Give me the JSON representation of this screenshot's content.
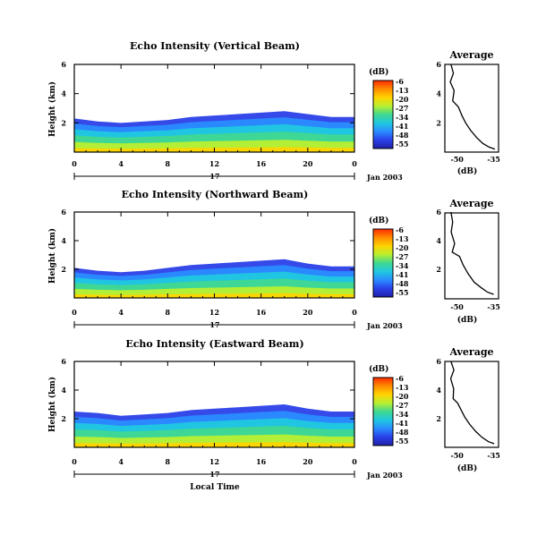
{
  "colorbar": {
    "title": "(dB)",
    "ticks": [
      "-6",
      "-13",
      "-20",
      "-27",
      "-34",
      "-41",
      "-48",
      "-55"
    ],
    "colors": [
      "#ff2a00",
      "#ff8c00",
      "#ffd400",
      "#b8f030",
      "#40d890",
      "#20c8e0",
      "#2a8cff",
      "#2a40e8",
      "#2020a8"
    ]
  },
  "shared": {
    "date_label": "Jan 2003",
    "day_label": "17",
    "xlabel": "Local Time",
    "ylabel": "Height (km)"
  },
  "chart_data": [
    {
      "type": "heatmap",
      "title": "Echo Intensity (Vertical Beam)",
      "xlabel": "",
      "ylabel": "Height (km)",
      "x_ticks": [
        "0",
        "4",
        "8",
        "12",
        "16",
        "20",
        "0"
      ],
      "y_ticks": [
        "2",
        "4",
        "6"
      ],
      "xlim": [
        0,
        24
      ],
      "ylim": [
        0,
        6
      ],
      "echo_top_km": [
        [
          0,
          2.3
        ],
        [
          2,
          2.1
        ],
        [
          4,
          2.0
        ],
        [
          6,
          2.1
        ],
        [
          8,
          2.2
        ],
        [
          10,
          2.4
        ],
        [
          12,
          2.5
        ],
        [
          14,
          2.6
        ],
        [
          16,
          2.7
        ],
        [
          18,
          2.8
        ],
        [
          20,
          2.6
        ],
        [
          22,
          2.4
        ],
        [
          24,
          2.4
        ]
      ],
      "profile": {
        "title": "Average",
        "xlabel": "(dB)",
        "x_ticks": [
          "-50",
          "-35"
        ],
        "y_ticks": [
          "2",
          "4",
          "6"
        ],
        "xlim": [
          -55,
          -33
        ],
        "ylim": [
          0,
          6
        ],
        "points": [
          [
            -52.5,
            6.0
          ],
          [
            -51.5,
            5.4
          ],
          [
            -52.8,
            4.8
          ],
          [
            -51.2,
            4.2
          ],
          [
            -51.8,
            3.5
          ],
          [
            -49.5,
            3.1
          ],
          [
            -48.0,
            2.5
          ],
          [
            -46.5,
            2.0
          ],
          [
            -44.5,
            1.5
          ],
          [
            -42.0,
            1.0
          ],
          [
            -39.5,
            0.6
          ],
          [
            -37.0,
            0.35
          ],
          [
            -34.5,
            0.2
          ]
        ]
      }
    },
    {
      "type": "heatmap",
      "title": "Echo Intensity (Northward Beam)",
      "xlabel": "",
      "ylabel": "Height (km)",
      "x_ticks": [
        "0",
        "4",
        "8",
        "12",
        "16",
        "20",
        "0"
      ],
      "y_ticks": [
        "2",
        "4",
        "6"
      ],
      "xlim": [
        0,
        24
      ],
      "ylim": [
        0,
        6
      ],
      "echo_top_km": [
        [
          0,
          2.1
        ],
        [
          2,
          1.9
        ],
        [
          4,
          1.8
        ],
        [
          6,
          1.9
        ],
        [
          8,
          2.1
        ],
        [
          10,
          2.3
        ],
        [
          12,
          2.4
        ],
        [
          14,
          2.5
        ],
        [
          16,
          2.6
        ],
        [
          18,
          2.7
        ],
        [
          20,
          2.4
        ],
        [
          22,
          2.2
        ],
        [
          24,
          2.2
        ]
      ],
      "profile": {
        "title": "Average",
        "xlabel": "(dB)",
        "x_ticks": [
          "-50",
          "-35"
        ],
        "y_ticks": [
          "2",
          "4",
          "6"
        ],
        "xlim": [
          -55,
          -33
        ],
        "ylim": [
          0,
          6
        ],
        "points": [
          [
            -52.5,
            6.0
          ],
          [
            -51.8,
            5.3
          ],
          [
            -52.4,
            4.6
          ],
          [
            -51.0,
            3.8
          ],
          [
            -52.0,
            3.2
          ],
          [
            -49.0,
            2.9
          ],
          [
            -47.5,
            2.3
          ],
          [
            -45.5,
            1.7
          ],
          [
            -43.0,
            1.1
          ],
          [
            -40.0,
            0.7
          ],
          [
            -37.5,
            0.4
          ],
          [
            -35.0,
            0.25
          ]
        ]
      }
    },
    {
      "type": "heatmap",
      "title": "Echo Intensity (Eastward Beam)",
      "xlabel": "Local Time",
      "ylabel": "Height (km)",
      "x_ticks": [
        "0",
        "4",
        "8",
        "12",
        "16",
        "20",
        "0"
      ],
      "y_ticks": [
        "2",
        "4",
        "6"
      ],
      "xlim": [
        0,
        24
      ],
      "ylim": [
        0,
        6
      ],
      "echo_top_km": [
        [
          0,
          2.5
        ],
        [
          2,
          2.4
        ],
        [
          4,
          2.2
        ],
        [
          6,
          2.3
        ],
        [
          8,
          2.4
        ],
        [
          10,
          2.6
        ],
        [
          12,
          2.7
        ],
        [
          14,
          2.8
        ],
        [
          16,
          2.9
        ],
        [
          18,
          3.0
        ],
        [
          20,
          2.7
        ],
        [
          22,
          2.5
        ],
        [
          24,
          2.5
        ]
      ],
      "profile": {
        "title": "Average",
        "xlabel": "(dB)",
        "x_ticks": [
          "-50",
          "-35"
        ],
        "y_ticks": [
          "2",
          "4",
          "6"
        ],
        "xlim": [
          -55,
          -33
        ],
        "ylim": [
          0,
          6
        ],
        "points": [
          [
            -52.5,
            6.0
          ],
          [
            -51.3,
            5.4
          ],
          [
            -52.6,
            4.8
          ],
          [
            -51.4,
            4.1
          ],
          [
            -51.6,
            3.4
          ],
          [
            -49.8,
            3.1
          ],
          [
            -48.3,
            2.6
          ],
          [
            -46.8,
            2.1
          ],
          [
            -44.8,
            1.6
          ],
          [
            -42.3,
            1.1
          ],
          [
            -39.8,
            0.7
          ],
          [
            -37.2,
            0.4
          ],
          [
            -34.8,
            0.25
          ]
        ]
      }
    }
  ]
}
